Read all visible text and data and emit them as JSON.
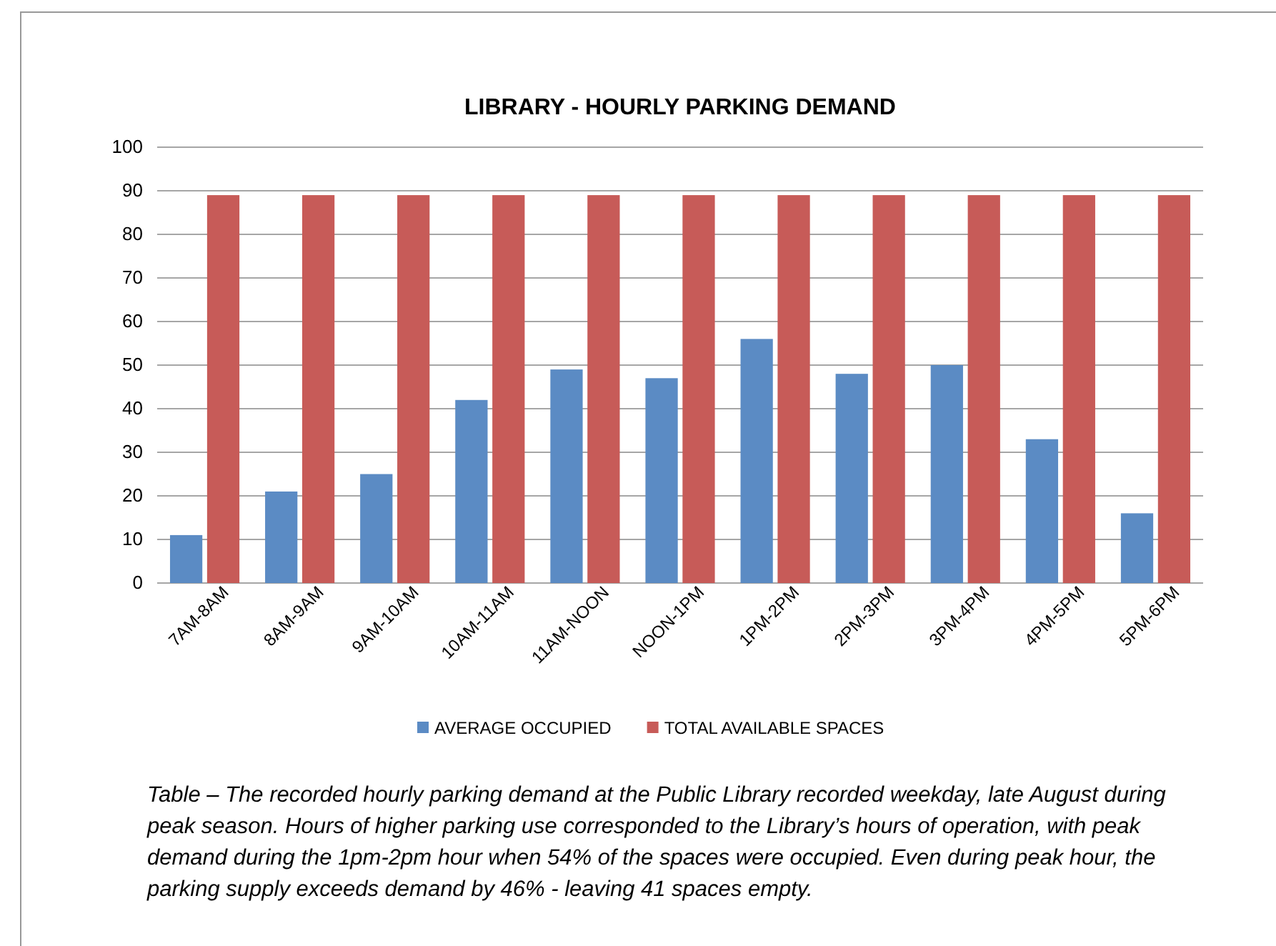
{
  "chart_data": {
    "type": "bar",
    "title": "LIBRARY - HOURLY PARKING DEMAND",
    "categories": [
      "7AM-8AM",
      "8AM-9AM",
      "9AM-10AM",
      "10AM-11AM",
      "11AM-NOON",
      "NOON-1PM",
      "1PM-2PM",
      "2PM-3PM",
      "3PM-4PM",
      "4PM-5PM",
      "5PM-6PM"
    ],
    "series": [
      {
        "name": "AVERAGE OCCUPIED",
        "color": "#5b8bc4",
        "values": [
          11,
          21,
          25,
          42,
          49,
          47,
          56,
          48,
          50,
          33,
          16
        ]
      },
      {
        "name": "TOTAL AVAILABLE SPACES",
        "color": "#c75b58",
        "values": [
          89,
          89,
          89,
          89,
          89,
          89,
          89,
          89,
          89,
          89,
          89
        ]
      }
    ],
    "ylim": [
      0,
      100
    ],
    "yticks": [
      0,
      10,
      20,
      30,
      40,
      50,
      60,
      70,
      80,
      90,
      100
    ],
    "grid": "y",
    "legend": "bottom",
    "annotations": [
      "Table – The recorded hourly parking demand at the Public Library recorded weekday, late August during peak season. Hours of higher parking use corresponded to the Library’s hours of operation, with peak demand during the 1pm-2pm hour when 54% of the spaces were occupied. Even during peak hour, the parking supply exceeds demand by 46% - leaving 41 spaces empty."
    ]
  }
}
